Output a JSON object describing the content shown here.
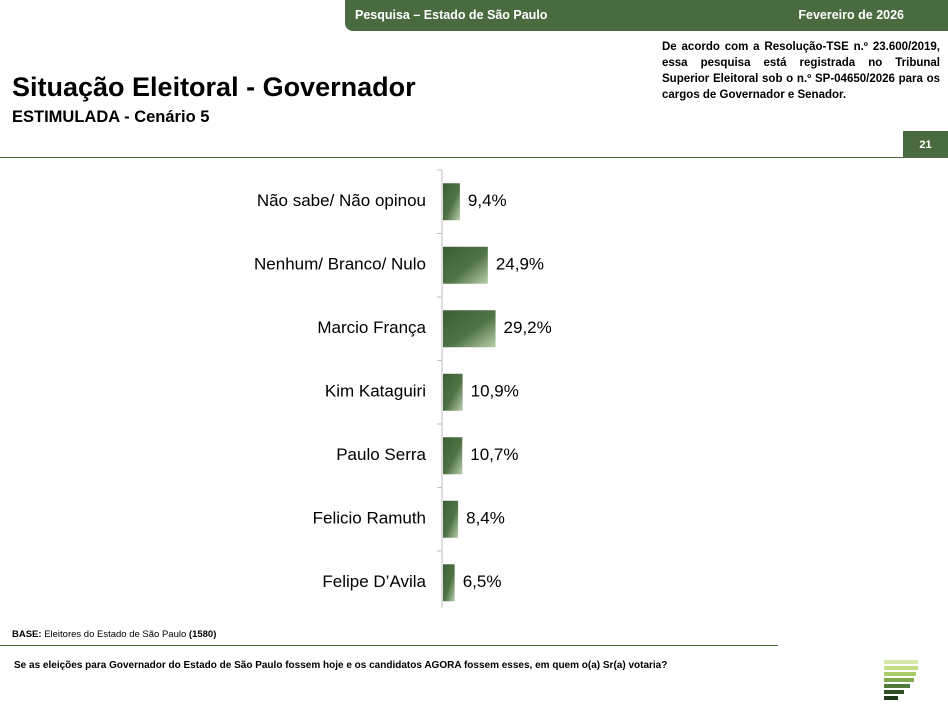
{
  "header": {
    "survey": "Pesquisa – Estado de São Paulo",
    "month": "Fevereiro de 2026"
  },
  "title": "Situação Eleitoral - Governador",
  "subtitle": "ESTIMULADA - Cenário 5",
  "legal_note": "De acordo com a Resolução-TSE n.º 23.600/2019, essa pesquisa está registrada no Tribunal Superior Eleitoral sob o n.º SP-04650/2026 para os cargos de Governador e Senador.",
  "page_number": "21",
  "base": {
    "label": "BASE:",
    "text": "Eleitores do Estado de São Paulo",
    "count": "(1580)"
  },
  "question": "Se as eleições para Governador do Estado de São Paulo fossem hoje e os candidatos AGORA fossem esses, em quem o(a) Sr(a) votaria?",
  "colors": {
    "brand_green": "#4a6b3f",
    "bar_dark": "#3d5e35",
    "bar_light": "#b9cfae"
  },
  "chart_data": {
    "type": "bar",
    "orientation": "horizontal",
    "categories": [
      "Não sabe/ Não opinou",
      "Nenhum/ Branco/ Nulo",
      "Marcio França",
      "Kim Kataguiri",
      "Paulo Serra",
      "Felicio Ramuth",
      "Felipe D’Avila"
    ],
    "values": [
      9.4,
      24.9,
      29.2,
      10.9,
      10.7,
      8.4,
      6.5
    ],
    "value_labels": [
      "9,4%",
      "24,9%",
      "29,2%",
      "10,9%",
      "10,7%",
      "8,4%",
      "6,5%"
    ],
    "unit": "%",
    "xlim": [
      0,
      100
    ],
    "grid": false,
    "legend": "none"
  }
}
